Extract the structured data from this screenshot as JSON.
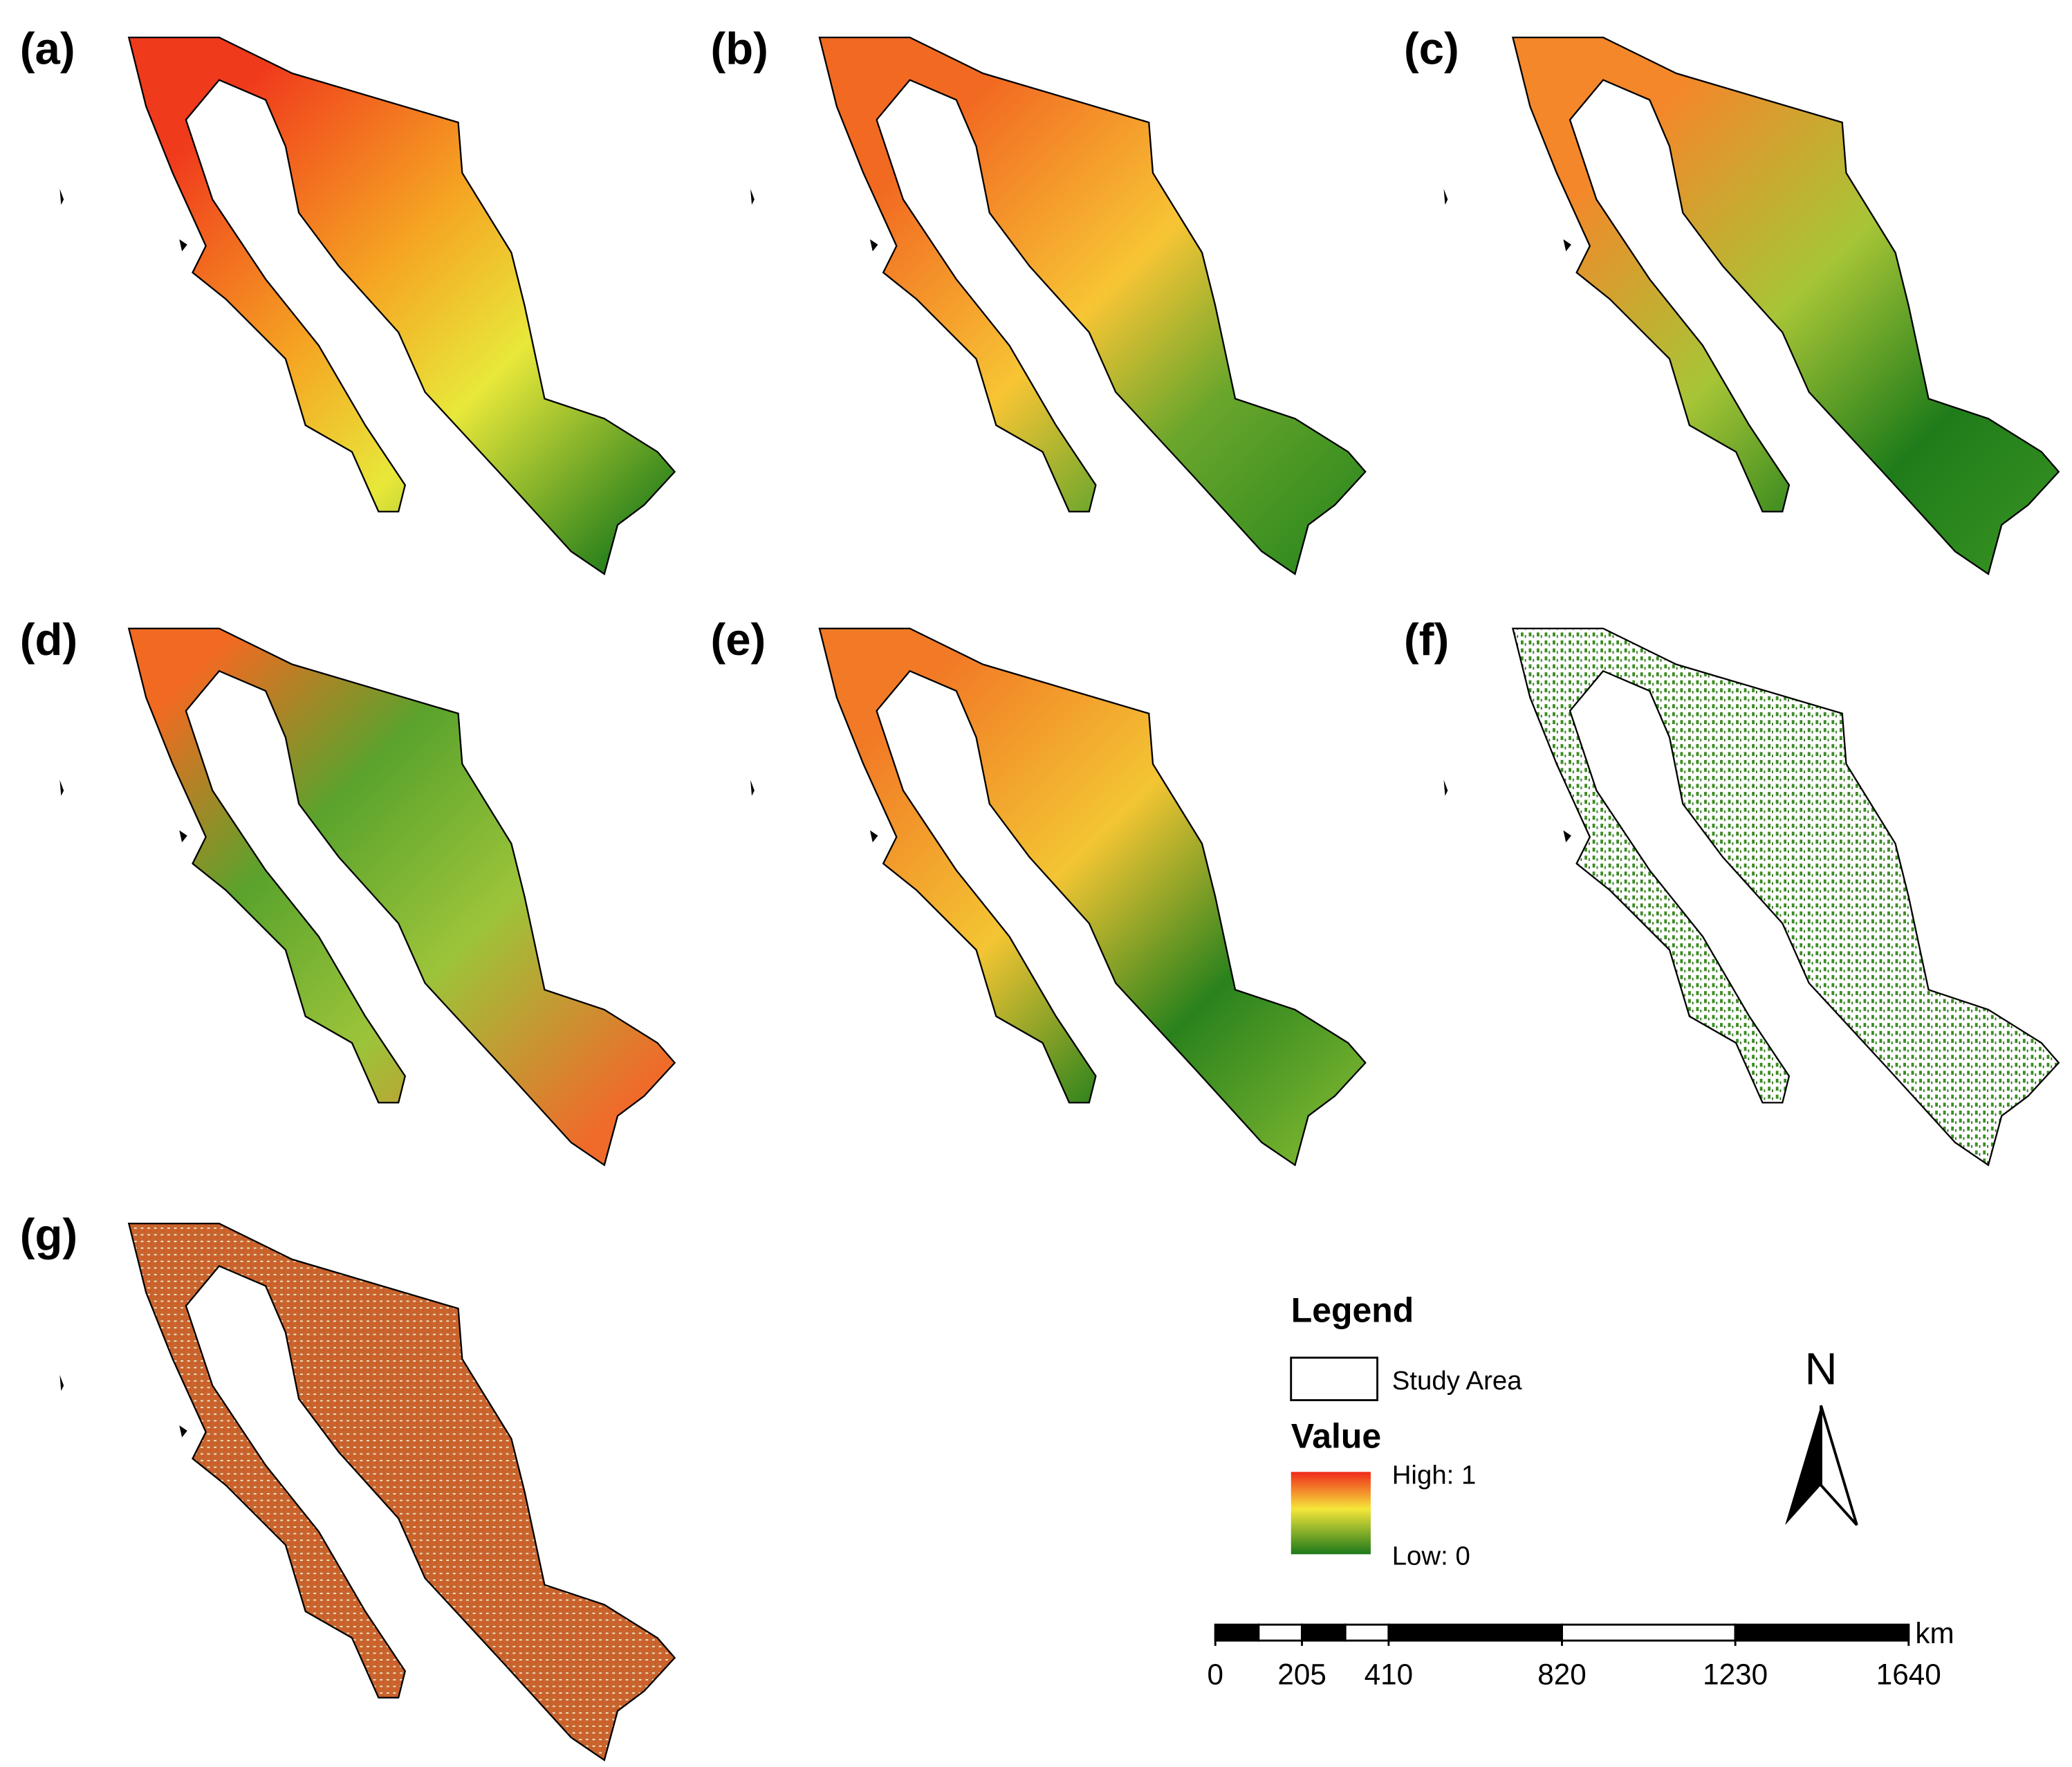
{
  "panels": [
    "(a)",
    "(b)",
    "(c)",
    "(d)",
    "(e)",
    "(f)",
    "(g)"
  ],
  "legend": {
    "title": "Legend",
    "study_area": "Study Area",
    "value_title": "Value",
    "high": "High: 1",
    "low": "Low: 0"
  },
  "north": "N",
  "scale": {
    "ticks": [
      0,
      205,
      410,
      820,
      1230,
      1640
    ],
    "unit": "km"
  }
}
